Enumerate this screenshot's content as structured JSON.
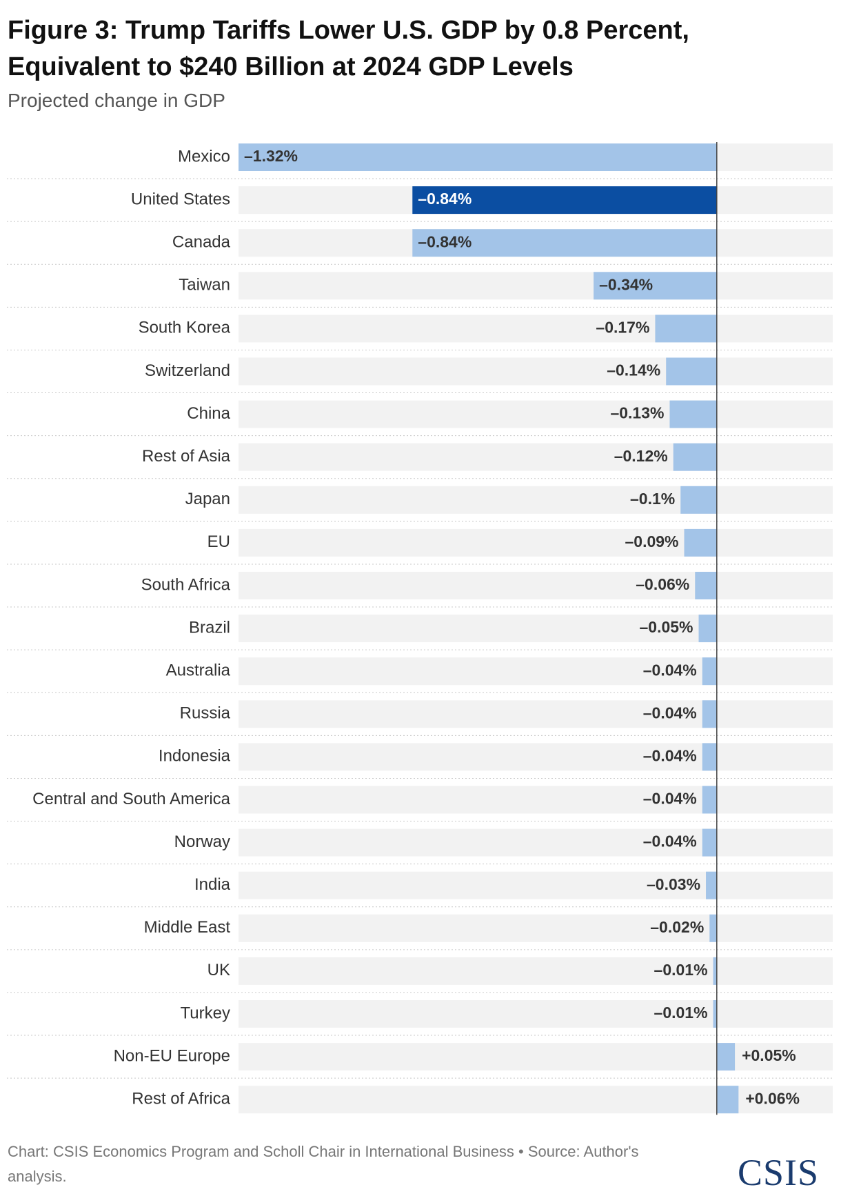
{
  "header": {
    "title": "Figure 3: Trump Tariffs Lower U.S. GDP by 0.8 Percent, Equivalent to $240 Billion at 2024 GDP Levels",
    "subtitle": "Projected change in GDP"
  },
  "footer": {
    "source": "Chart: CSIS Economics Program and Scholl Chair in International Business • Source: Author's analysis.",
    "logo": "CSIS"
  },
  "colors": {
    "bar": "#a3c4e8",
    "highlight": "#0b4ea2",
    "track": "#f2f2f2",
    "axis": "#444444",
    "label_dark": "#333333",
    "label_light": "#ffffff"
  },
  "chart_data": {
    "type": "bar",
    "orientation": "horizontal",
    "title": "Figure 3: Trump Tariffs Lower U.S. GDP by 0.8 Percent, Equivalent to $240 Billion at 2024 GDP Levels",
    "subtitle": "Projected change in GDP",
    "xlabel": "",
    "ylabel": "",
    "xlim": [
      -1.32,
      0.32
    ],
    "highlight": "United States",
    "categories": [
      "Mexico",
      "United States",
      "Canada",
      "Taiwan",
      "South Korea",
      "Switzerland",
      "China",
      "Rest of Asia",
      "Japan",
      "EU",
      "South Africa",
      "Brazil",
      "Australia",
      "Russia",
      "Indonesia",
      "Central and South America",
      "Norway",
      "India",
      "Middle East",
      "UK",
      "Turkey",
      "Non-EU Europe",
      "Rest of Africa"
    ],
    "values": [
      -1.32,
      -0.84,
      -0.84,
      -0.34,
      -0.17,
      -0.14,
      -0.13,
      -0.12,
      -0.1,
      -0.09,
      -0.06,
      -0.05,
      -0.04,
      -0.04,
      -0.04,
      -0.04,
      -0.04,
      -0.03,
      -0.02,
      -0.01,
      -0.01,
      0.05,
      0.06
    ],
    "labels": [
      "–1.32%",
      "–0.84%",
      "–0.84%",
      "–0.34%",
      "–0.17%",
      "–0.14%",
      "–0.13%",
      "–0.12%",
      "–0.1%",
      "–0.09%",
      "–0.06%",
      "–0.05%",
      "–0.04%",
      "–0.04%",
      "–0.04%",
      "–0.04%",
      "–0.04%",
      "–0.03%",
      "–0.02%",
      "–0.01%",
      "–0.01%",
      "+0.05%",
      "+0.06%"
    ]
  }
}
